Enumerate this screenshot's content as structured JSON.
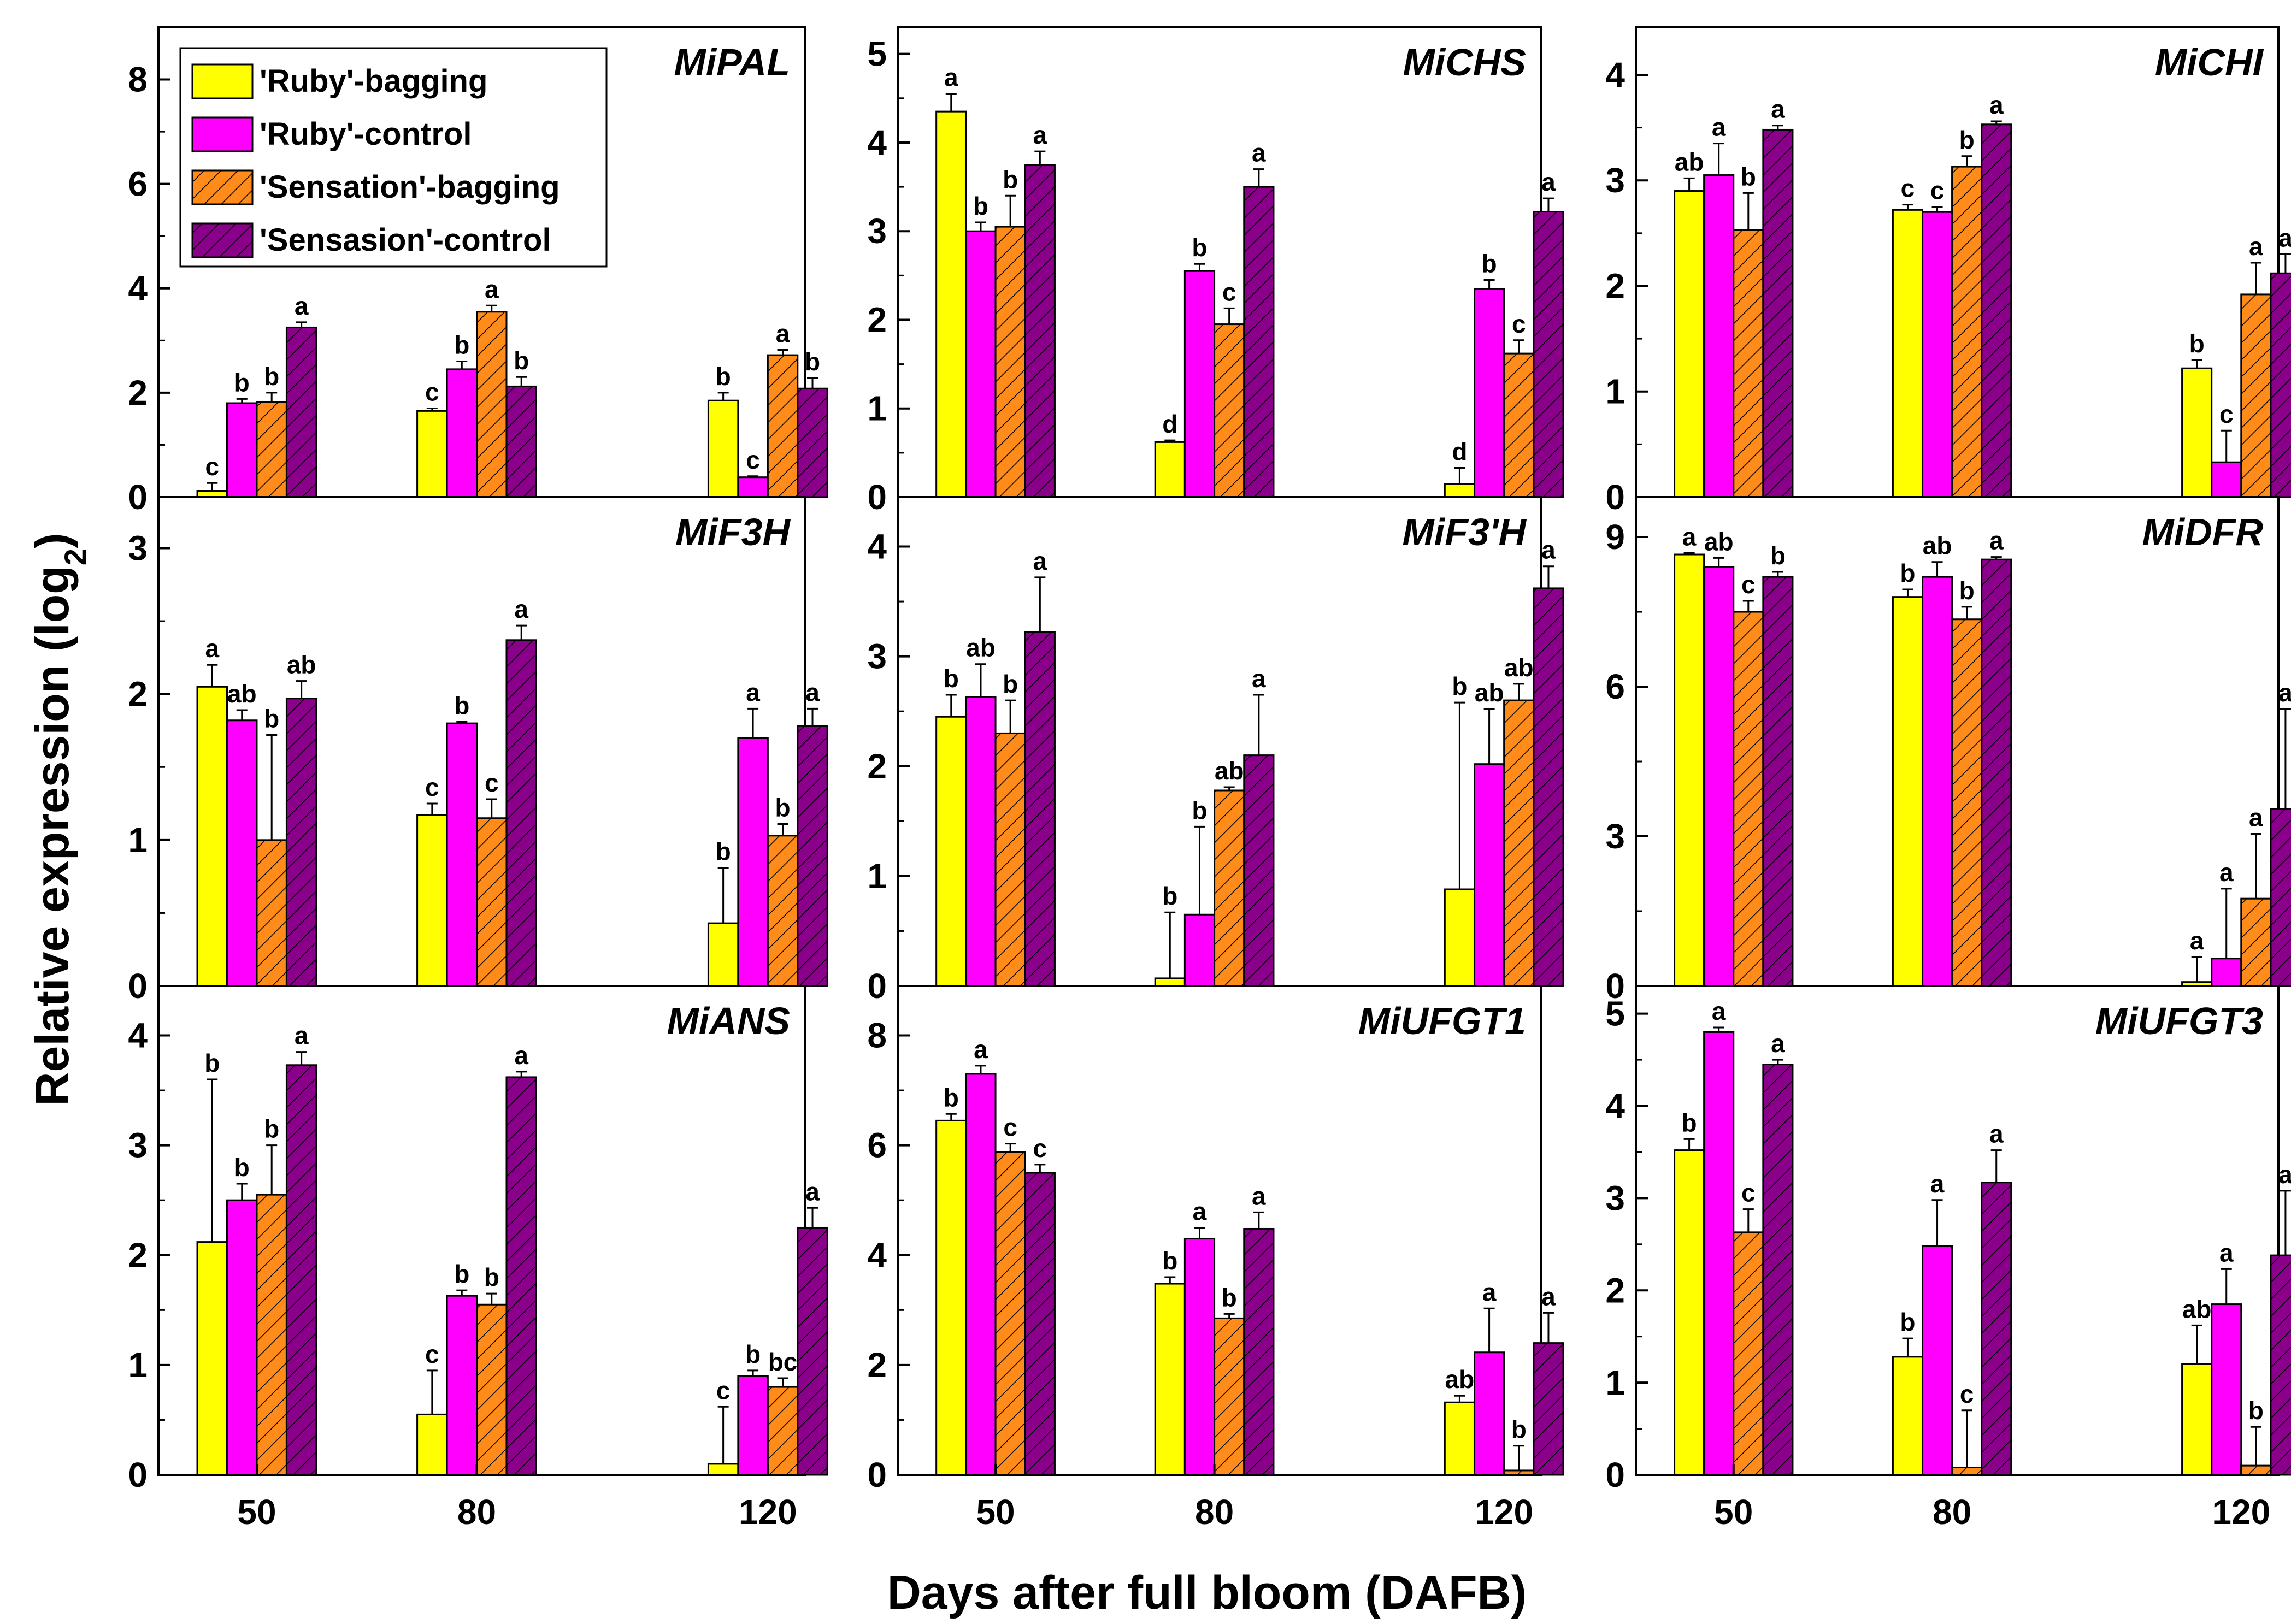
{
  "colors": {
    "ruby_bagging": "#ffff00",
    "ruby_control": "#ff00ff",
    "sensation_bagging": "#ff8c1a",
    "sensation_control": "#8b008b"
  },
  "chart_data": {
    "type": "bar",
    "ylabel": "Relative expression (log2)",
    "ylabel_main": "Relative expression (log",
    "ylabel_sub": "2",
    "ylabel_close": ")",
    "xlabel": "Days after full bloom (DAFB)",
    "categories": [
      "50",
      "80",
      "120"
    ],
    "legend": [
      {
        "name": "'Ruby'-bagging",
        "color": "#ffff00",
        "hatch": false
      },
      {
        "name": "'Ruby'-control",
        "color": "#ff00ff",
        "hatch": false
      },
      {
        "name": "'Sensation'-bagging",
        "color": "#ff8c1a",
        "hatch": true
      },
      {
        "name": "'Sensasion'-control",
        "color": "#8b008b",
        "hatch": true
      }
    ],
    "panels": [
      {
        "gene": "MiPAL",
        "ylim": [
          0,
          9
        ],
        "yticks": [
          "0",
          "2",
          "4",
          "6",
          "8"
        ],
        "values": [
          [
            0.12,
            1.8,
            1.82,
            3.25
          ],
          [
            1.65,
            2.45,
            3.55,
            2.12
          ],
          [
            1.85,
            0.38,
            2.72,
            2.08
          ]
        ],
        "errors": [
          [
            0.15,
            0.08,
            0.18,
            0.1
          ],
          [
            0.05,
            0.15,
            0.12,
            0.18
          ],
          [
            0.15,
            0.02,
            0.1,
            0.2
          ]
        ],
        "labels": [
          [
            "c",
            "b",
            "b",
            "a"
          ],
          [
            "c",
            "b",
            "a",
            "b"
          ],
          [
            "b",
            "c",
            "a",
            "b"
          ]
        ]
      },
      {
        "gene": "MiCHS",
        "ylim": [
          0,
          5.3
        ],
        "yticks": [
          "0",
          "1",
          "2",
          "3",
          "4",
          "5"
        ],
        "values": [
          [
            4.35,
            3.0,
            3.05,
            3.75
          ],
          [
            0.62,
            2.55,
            1.95,
            3.5
          ],
          [
            0.15,
            2.35,
            1.62,
            3.22
          ]
        ],
        "errors": [
          [
            0.2,
            0.1,
            0.35,
            0.15
          ],
          [
            0.02,
            0.08,
            0.18,
            0.2
          ],
          [
            0.18,
            0.1,
            0.15,
            0.15
          ]
        ],
        "labels": [
          [
            "a",
            "b",
            "b",
            "a"
          ],
          [
            "d",
            "b",
            "c",
            "a"
          ],
          [
            "d",
            "b",
            "c",
            "a"
          ]
        ]
      },
      {
        "gene": "MiCHI",
        "ylim": [
          0,
          4.45
        ],
        "yticks": [
          "0",
          "1",
          "2",
          "3",
          "4"
        ],
        "values": [
          [
            2.9,
            3.05,
            2.53,
            3.48
          ],
          [
            2.72,
            2.7,
            3.13,
            3.53
          ],
          [
            1.22,
            0.33,
            1.92,
            2.12
          ]
        ],
        "errors": [
          [
            0.12,
            0.3,
            0.35,
            0.04
          ],
          [
            0.05,
            0.05,
            0.1,
            0.03
          ],
          [
            0.08,
            0.3,
            0.3,
            0.18
          ]
        ],
        "labels": [
          [
            "ab",
            "a",
            "b",
            "a"
          ],
          [
            "c",
            "c",
            "b",
            "a"
          ],
          [
            "b",
            "c",
            "a",
            "a"
          ]
        ]
      },
      {
        "gene": "MiF3H",
        "ylim": [
          0,
          3.35
        ],
        "yticks": [
          "0",
          "1",
          "2",
          "3"
        ],
        "values": [
          [
            2.05,
            1.82,
            1.0,
            1.97
          ],
          [
            1.17,
            1.8,
            1.15,
            2.37
          ],
          [
            0.43,
            1.7,
            1.03,
            1.78
          ]
        ],
        "errors": [
          [
            0.15,
            0.07,
            0.72,
            0.12
          ],
          [
            0.08,
            0.01,
            0.13,
            0.1
          ],
          [
            0.38,
            0.2,
            0.08,
            0.12
          ]
        ],
        "labels": [
          [
            "a",
            "ab",
            "b",
            "ab"
          ],
          [
            "c",
            "b",
            "c",
            "a"
          ],
          [
            "b",
            "a",
            "b",
            "a"
          ]
        ]
      },
      {
        "gene": "MiF3'H",
        "ylim": [
          0,
          4.45
        ],
        "yticks": [
          "0",
          "1",
          "2",
          "3",
          "4"
        ],
        "values": [
          [
            2.45,
            2.63,
            2.3,
            3.22
          ],
          [
            0.07,
            0.65,
            1.78,
            2.1
          ],
          [
            0.88,
            2.02,
            2.6,
            3.62
          ]
        ],
        "errors": [
          [
            0.2,
            0.3,
            0.3,
            0.5
          ],
          [
            0.6,
            0.8,
            0.03,
            0.55
          ],
          [
            1.7,
            0.5,
            0.15,
            0.2
          ]
        ],
        "labels": [
          [
            "b",
            "ab",
            "b",
            "a"
          ],
          [
            "b",
            "b",
            "ab",
            "a"
          ],
          [
            "b",
            "ab",
            "ab",
            "a"
          ]
        ]
      },
      {
        "gene": "MiDFR",
        "ylim": [
          0,
          9.8
        ],
        "yticks": [
          "0",
          "3",
          "6",
          "9"
        ],
        "values": [
          [
            8.65,
            8.4,
            7.5,
            8.2
          ],
          [
            7.8,
            8.2,
            7.35,
            8.55
          ],
          [
            0.08,
            0.55,
            1.75,
            3.55
          ]
        ],
        "errors": [
          [
            0.03,
            0.18,
            0.22,
            0.1
          ],
          [
            0.15,
            0.3,
            0.25,
            0.05
          ],
          [
            0.5,
            1.4,
            1.3,
            2.0
          ]
        ],
        "labels": [
          [
            "a",
            "ab",
            "c",
            "b"
          ],
          [
            "b",
            "ab",
            "b",
            "a"
          ],
          [
            "a",
            "a",
            "a",
            "a"
          ]
        ]
      },
      {
        "gene": "MiANS",
        "ylim": [
          0,
          4.45
        ],
        "yticks": [
          "0",
          "1",
          "2",
          "3",
          "4"
        ],
        "values": [
          [
            2.12,
            2.5,
            2.55,
            3.73
          ],
          [
            0.55,
            1.63,
            1.55,
            3.62
          ],
          [
            0.1,
            0.9,
            0.8,
            2.25
          ]
        ],
        "errors": [
          [
            1.48,
            0.15,
            0.45,
            0.12
          ],
          [
            0.4,
            0.05,
            0.1,
            0.05
          ],
          [
            0.52,
            0.05,
            0.08,
            0.18
          ]
        ],
        "labels": [
          [
            "b",
            "b",
            "b",
            "a"
          ],
          [
            "c",
            "b",
            "b",
            "a"
          ],
          [
            "c",
            "b",
            "bc",
            "a"
          ]
        ]
      },
      {
        "gene": "MiUFGT1",
        "ylim": [
          0,
          8.9
        ],
        "yticks": [
          "0",
          "2",
          "4",
          "6",
          "8"
        ],
        "values": [
          [
            6.45,
            7.3,
            5.88,
            5.5
          ],
          [
            3.48,
            4.3,
            2.85,
            4.48
          ],
          [
            1.32,
            2.23,
            0.08,
            2.4
          ]
        ],
        "errors": [
          [
            0.12,
            0.15,
            0.15,
            0.15
          ],
          [
            0.12,
            0.2,
            0.08,
            0.3
          ],
          [
            0.12,
            0.8,
            0.45,
            0.55
          ]
        ],
        "labels": [
          [
            "b",
            "a",
            "c",
            "c"
          ],
          [
            "b",
            "a",
            "b",
            "a"
          ],
          [
            "ab",
            "a",
            "b",
            "a"
          ]
        ]
      },
      {
        "gene": "MiUFGT3",
        "ylim": [
          0,
          5.3
        ],
        "yticks": [
          "0",
          "1",
          "2",
          "3",
          "4",
          "5"
        ],
        "values": [
          [
            3.52,
            4.8,
            2.63,
            4.45
          ],
          [
            1.28,
            2.48,
            0.08,
            3.17
          ],
          [
            1.2,
            1.85,
            0.1,
            2.38
          ]
        ],
        "errors": [
          [
            0.12,
            0.05,
            0.25,
            0.05
          ],
          [
            0.2,
            0.5,
            0.62,
            0.35
          ],
          [
            0.42,
            0.38,
            0.42,
            0.7
          ]
        ],
        "labels": [
          [
            "b",
            "a",
            "c",
            "a"
          ],
          [
            "b",
            "a",
            "c",
            "a"
          ],
          [
            "ab",
            "a",
            "b",
            "a"
          ]
        ]
      }
    ]
  }
}
